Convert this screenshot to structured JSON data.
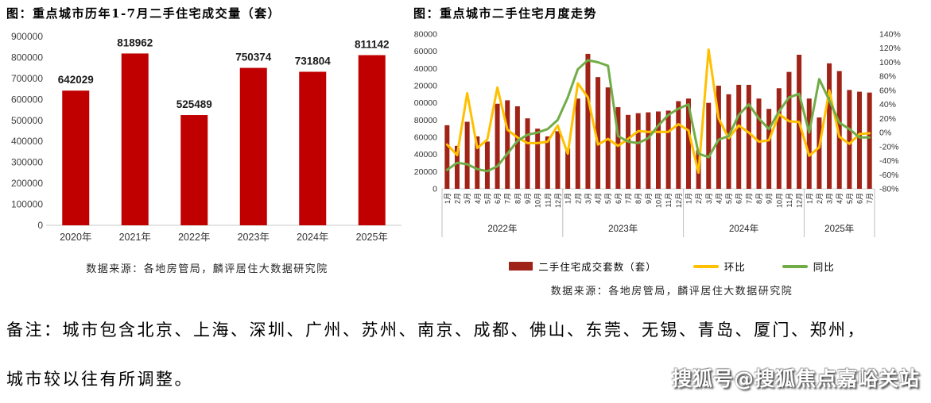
{
  "note": {
    "line1": "备注：城市包含北京、上海、深圳、广州、苏州、南京、成都、佛山、东莞、无锡、青岛、厦门、郑州，",
    "line2": "城市较以往有所调整。"
  },
  "watermark": "搜狐号@搜狐焦点嘉峪关站",
  "chart_data": [
    {
      "type": "bar",
      "title": "图：重点城市历年1-7月二手住宅成交量（套）",
      "source": "数据来源：各地房管局，麟评居住大数据研究院",
      "categories": [
        "2020年",
        "2021年",
        "2022年",
        "2023年",
        "2024年",
        "2025年"
      ],
      "values": [
        642029,
        818962,
        525489,
        750374,
        731804,
        811142
      ],
      "ylim": [
        0,
        900000
      ],
      "y_ticks": [
        0,
        100000,
        200000,
        300000,
        400000,
        500000,
        600000,
        700000,
        800000,
        900000
      ],
      "grid": false,
      "legend_position": "none",
      "bar_color": "#c00000",
      "axis_text_color": "#404040",
      "label_color": "#1a1a1a"
    },
    {
      "type": "bar+line",
      "title": "图：重点城市二手住宅月度走势",
      "source": "数据来源：各地房管局，麟评居住大数据研究院",
      "categories": [
        "1月",
        "2月",
        "3月",
        "4月",
        "5月",
        "6月",
        "7月",
        "8月",
        "9月",
        "10月",
        "11月",
        "12月",
        "1月",
        "2月",
        "3月",
        "4月",
        "5月",
        "6月",
        "7月",
        "8月",
        "9月",
        "10月",
        "11月",
        "12月",
        "1月",
        "2月",
        "3月",
        "4月",
        "5月",
        "6月",
        "7月",
        "8月",
        "9月",
        "10月",
        "11月",
        "12月",
        "1月",
        "2月",
        "3月",
        "4月",
        "5月",
        "6月",
        "7月"
      ],
      "year_groups": [
        {
          "label": "2022年",
          "count": 12
        },
        {
          "label": "2023年",
          "count": 12
        },
        {
          "label": "2024年",
          "count": 12
        },
        {
          "label": "2025年",
          "count": 7
        }
      ],
      "series": [
        {
          "name": "二手住宅成交套数（套）",
          "type": "bar",
          "axis": "left",
          "color": "#a02318",
          "values": [
            74000,
            50000,
            78000,
            61000,
            55000,
            99000,
            103000,
            96000,
            82000,
            70000,
            61000,
            67000,
            47000,
            105000,
            157000,
            130000,
            118000,
            95000,
            86000,
            88000,
            89000,
            90000,
            91000,
            102000,
            105000,
            45000,
            100000,
            120000,
            110000,
            121000,
            121000,
            105000,
            93000,
            117000,
            136000,
            156000,
            105000,
            83000,
            146000,
            137000,
            115000,
            113000,
            112000
          ]
        },
        {
          "name": "环比",
          "type": "line",
          "axis": "right",
          "color": "#ffc000",
          "values": [
            -17,
            -32,
            56,
            -22,
            -10,
            64,
            4,
            -7,
            -15,
            -15,
            -13,
            10,
            -30,
            70,
            50,
            -17,
            -9,
            -19,
            -9,
            2,
            1,
            1,
            1,
            12,
            3,
            -57,
            118,
            20,
            -8,
            10,
            0,
            -13,
            -11,
            26,
            16,
            15,
            -33,
            -21,
            60,
            -6,
            -16,
            -2,
            -1
          ]
        },
        {
          "name": "同比",
          "type": "line",
          "axis": "right",
          "color": "#70ad47",
          "values": [
            -53,
            -43,
            -45,
            -52,
            -55,
            -48,
            -30,
            -12,
            -3,
            0,
            5,
            18,
            50,
            90,
            103,
            100,
            95,
            -5,
            -13,
            -15,
            -8,
            10,
            25,
            34,
            40,
            -30,
            -35,
            -10,
            -5,
            25,
            40,
            20,
            5,
            30,
            50,
            55,
            0,
            76,
            46,
            14,
            5,
            -7,
            -7
          ]
        }
      ],
      "left_ylim": [
        0,
        180000
      ],
      "left_ticks": [
        180000,
        160000,
        140000,
        120000,
        100000,
        80000,
        60000,
        40000,
        20000,
        0
      ],
      "right_ylim": [
        -80,
        140
      ],
      "right_ticks": [
        "140%",
        "120%",
        "100%",
        "80%",
        "60%",
        "40%",
        "20%",
        "0%",
        "-20%",
        "-40%",
        "-60%",
        "-80%"
      ],
      "grid": false,
      "legend_position": "bottom",
      "axis_text_color": "#333333"
    }
  ]
}
